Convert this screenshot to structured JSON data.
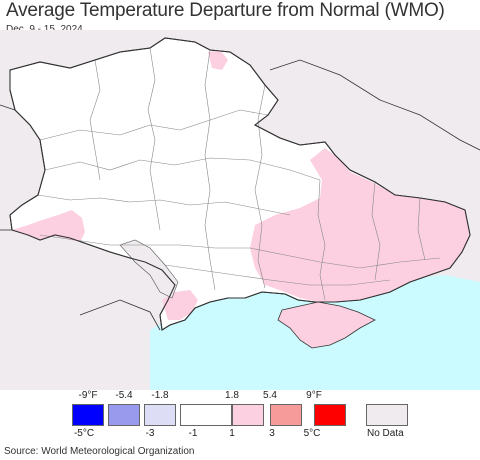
{
  "header": {
    "title": "Average Temperature Departure from Normal (WMO)",
    "date_range": "Dec. 9 - 15, 2024"
  },
  "legend": {
    "fahrenheit_ticks": [
      "-9°F",
      "-5.4",
      "-1.8",
      "1.8",
      "5.4",
      "9°F"
    ],
    "celsius_ticks": [
      "-5°C",
      "-3",
      "-1",
      "1",
      "3",
      "5°C"
    ],
    "colors": [
      "#0000ff",
      "#9999ee",
      "#ddddf6",
      "#ffffff",
      "#fcd0e0",
      "#f79a9a",
      "#ff0000"
    ],
    "no_data_label": "No Data",
    "no_data_color": "#efebee"
  },
  "map_colors": {
    "outside": "#efebee",
    "near_normal": "#ffffff",
    "warm": "#fcd0e0",
    "sea": "#ccfbff",
    "border": "#333333",
    "oblast_line": "#888888"
  },
  "footer": {
    "source": "Source: World Meteorological Organization"
  }
}
